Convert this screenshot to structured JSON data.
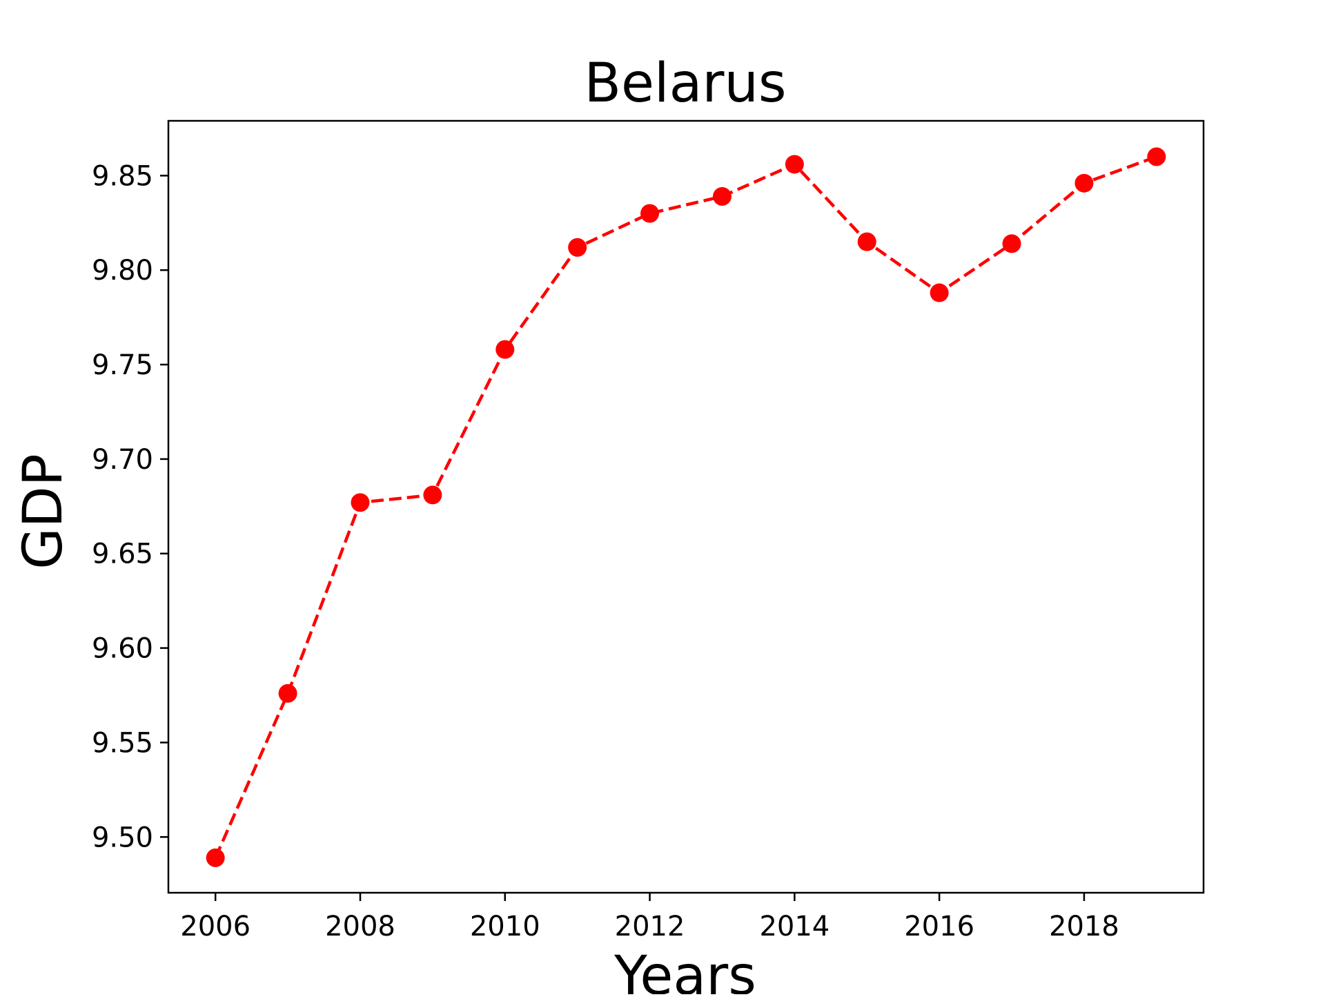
{
  "chart_data": {
    "type": "line",
    "title": "Belarus",
    "xlabel": "Years",
    "ylabel": "GDP",
    "xlim": [
      2005.35,
      2019.65
    ],
    "ylim": [
      9.4705,
      9.879
    ],
    "x_ticks": [
      2006,
      2008,
      2010,
      2012,
      2014,
      2016,
      2018
    ],
    "x_tick_labels": [
      "2006",
      "2008",
      "2010",
      "2012",
      "2014",
      "2016",
      "2018"
    ],
    "y_ticks": [
      9.5,
      9.55,
      9.6,
      9.65,
      9.7,
      9.75,
      9.8,
      9.85
    ],
    "y_tick_labels": [
      "9.50",
      "9.55",
      "9.60",
      "9.65",
      "9.70",
      "9.75",
      "9.80",
      "9.85"
    ],
    "grid": false,
    "series": [
      {
        "x": [
          2006,
          2007,
          2008,
          2009,
          2010,
          2011,
          2012,
          2013,
          2014,
          2015,
          2016,
          2017,
          2018,
          2019
        ],
        "y": [
          9.489,
          9.576,
          9.677,
          9.681,
          9.758,
          9.812,
          9.83,
          9.839,
          9.856,
          9.815,
          9.788,
          9.814,
          9.846,
          9.86
        ],
        "color": "#ff0000",
        "line_style": "dashed",
        "marker": "circle"
      }
    ]
  }
}
